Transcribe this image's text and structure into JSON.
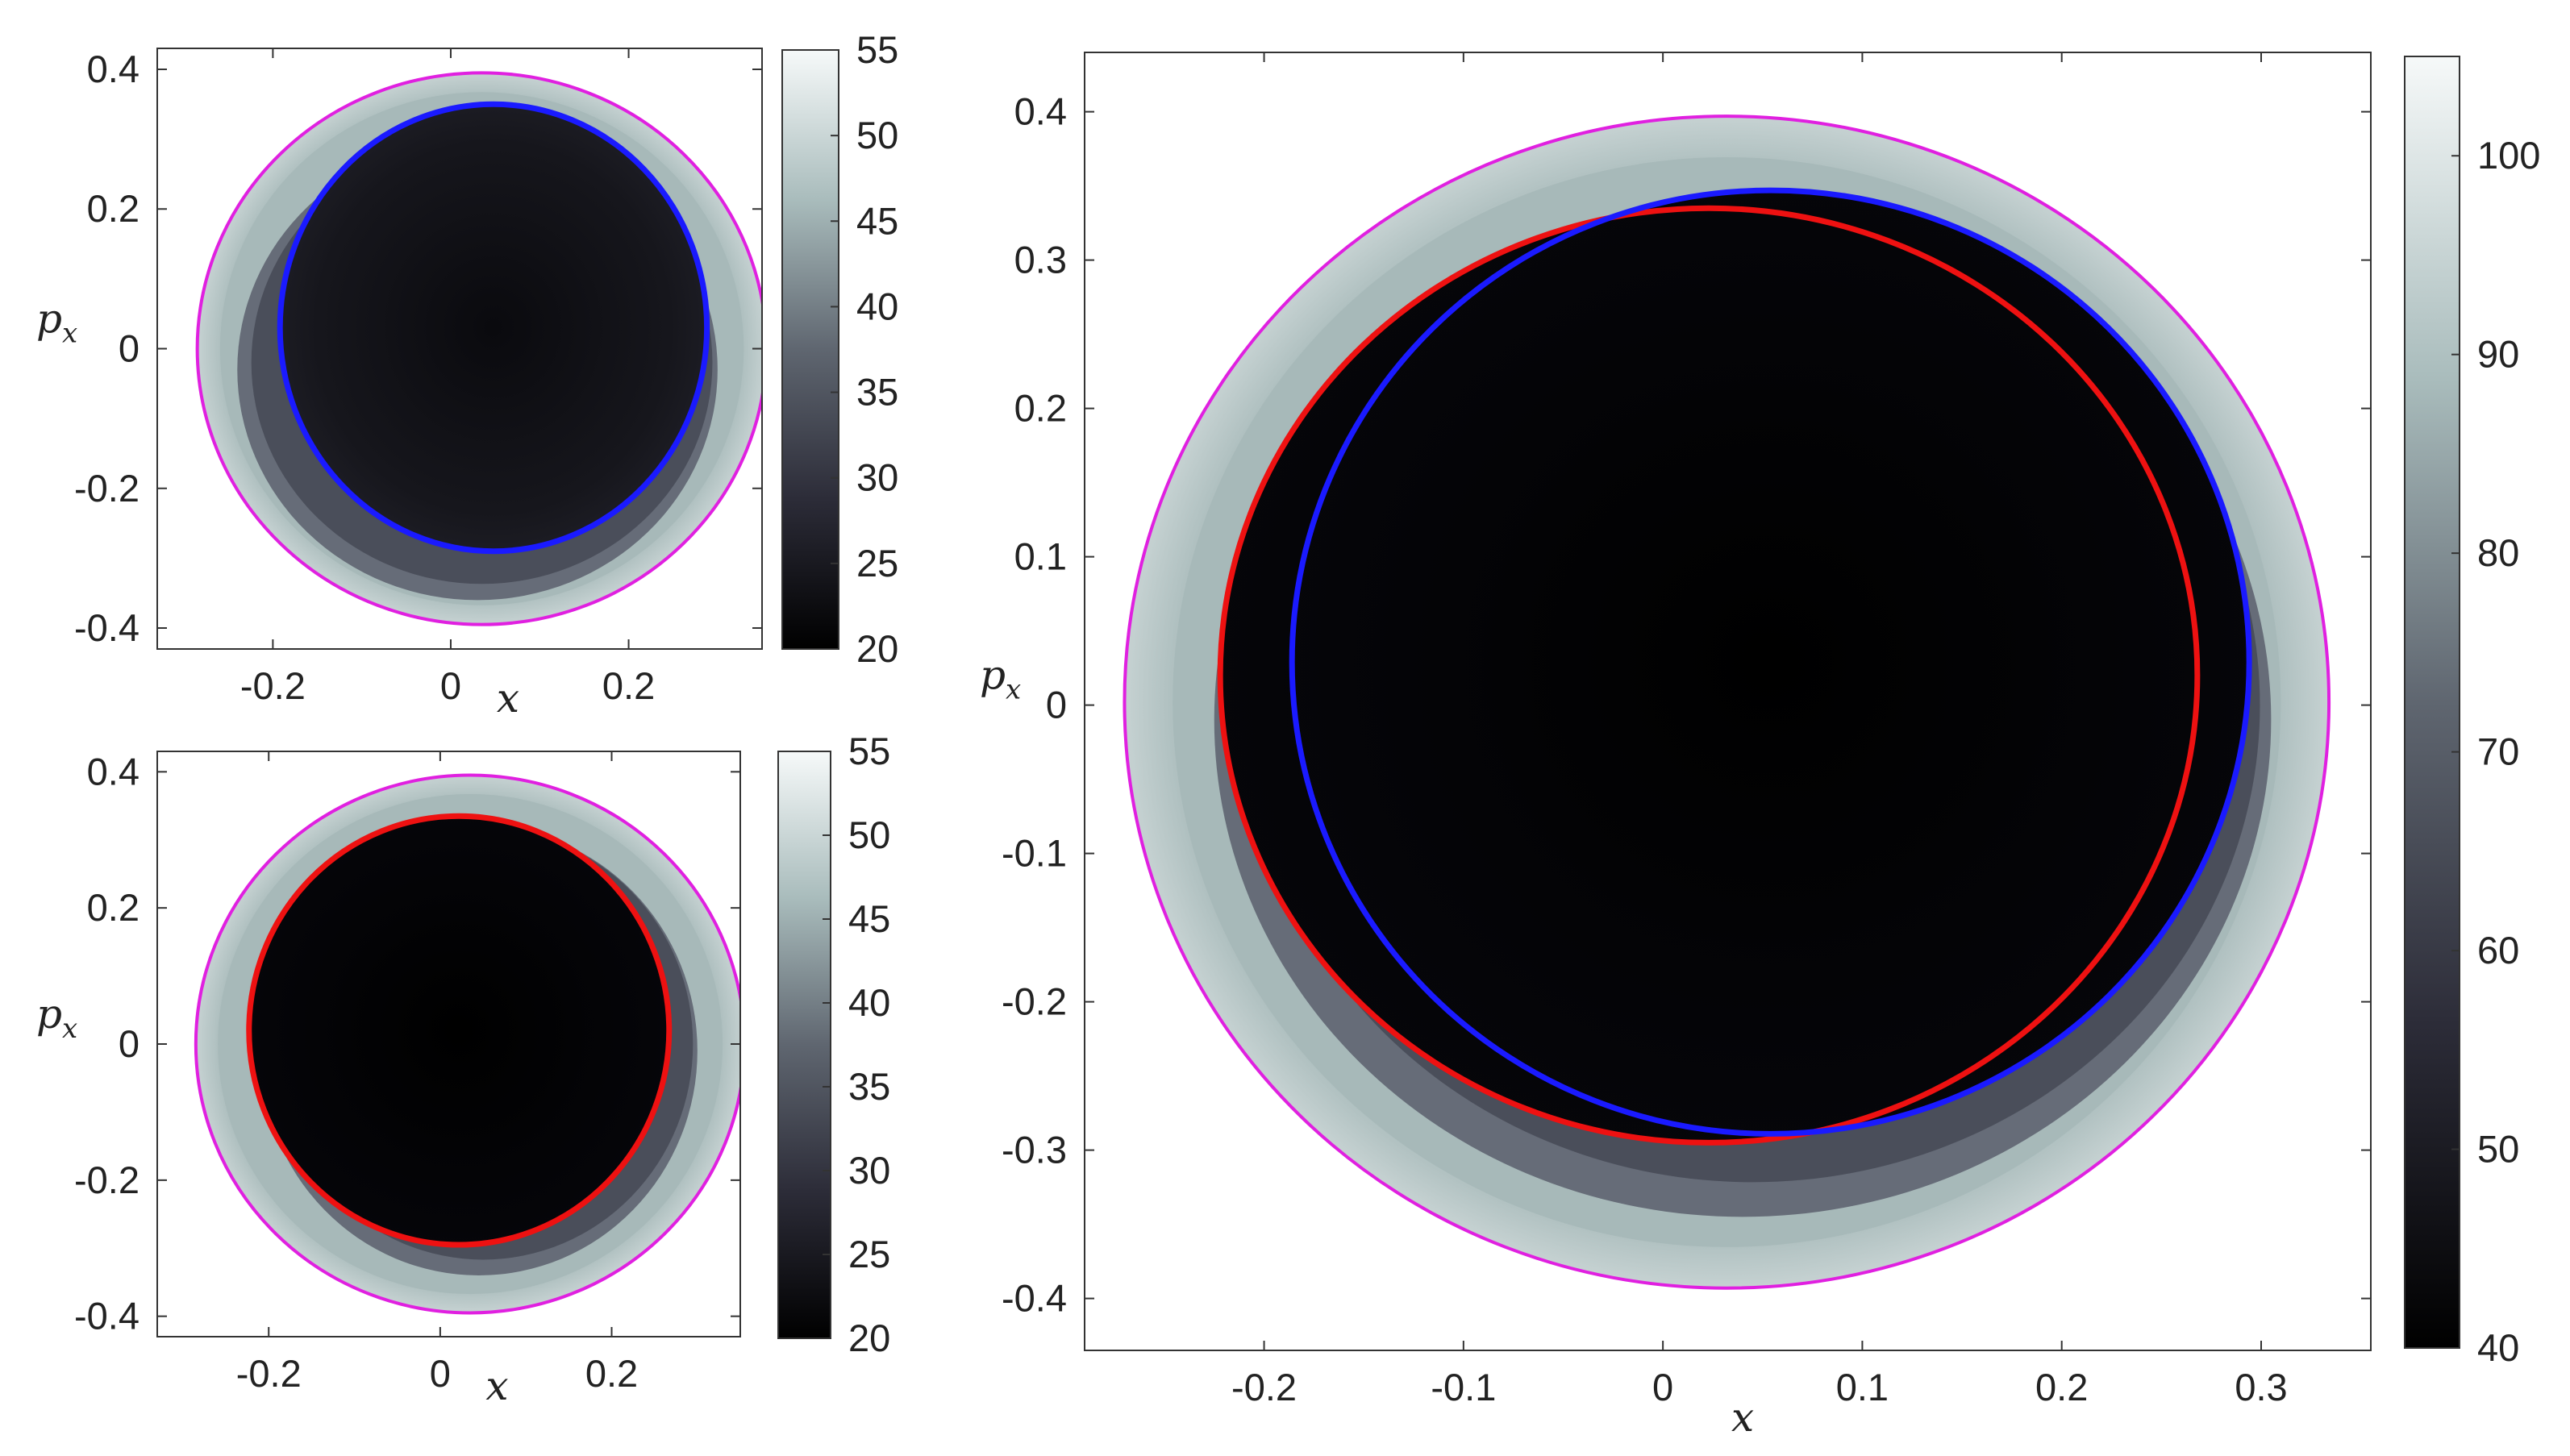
{
  "chart_data": [
    {
      "id": "top-left",
      "type": "heatmap",
      "xlabel": "x",
      "ylabel_base": "p",
      "ylabel_sub": "x",
      "xlim": [
        -0.33,
        0.35
      ],
      "ylim": [
        -0.43,
        0.43
      ],
      "xticks": [
        -0.2,
        0,
        0.2
      ],
      "xtick_labels": [
        "-0.2",
        "0",
        "0.2"
      ],
      "yticks": [
        0.4,
        0.2,
        0,
        -0.2,
        -0.4
      ],
      "ytick_labels": [
        "0.4",
        "0.2",
        "0",
        "-0.2",
        "-0.4"
      ],
      "colorbar": {
        "min": 20,
        "max": 55,
        "ticks": [
          55,
          50,
          45,
          40,
          35,
          30,
          25,
          20
        ],
        "tick_labels": [
          "55",
          "50",
          "45",
          "40",
          "35",
          "30",
          "25",
          "20"
        ]
      },
      "contours": [
        {
          "name": "outer",
          "color": "#e020e0",
          "width": 4,
          "cx": 0.035,
          "cy": 0.0,
          "rx": 0.32,
          "ry": 0.395
        },
        {
          "name": "blue",
          "color": "#1a1aff",
          "width": 7,
          "cx": 0.048,
          "cy": 0.03,
          "rx": 0.24,
          "ry": 0.32
        }
      ],
      "crescent": {
        "cx": 0.03,
        "cy": -0.03,
        "rx": 0.27,
        "ry": 0.33
      }
    },
    {
      "id": "bottom-left",
      "type": "heatmap",
      "xlabel": "x",
      "ylabel_base": "p",
      "ylabel_sub": "x",
      "xlim": [
        -0.33,
        0.35
      ],
      "ylim": [
        -0.43,
        0.43
      ],
      "xticks": [
        -0.2,
        0,
        0.2
      ],
      "xtick_labels": [
        "-0.2",
        "0",
        "0.2"
      ],
      "yticks": [
        0.4,
        0.2,
        0,
        -0.2,
        -0.4
      ],
      "ytick_labels": [
        "0.4",
        "0.2",
        "0",
        "-0.2",
        "-0.4"
      ],
      "colorbar": {
        "min": 20,
        "max": 55,
        "ticks": [
          55,
          50,
          45,
          40,
          35,
          30,
          25,
          20
        ],
        "tick_labels": [
          "55",
          "50",
          "45",
          "40",
          "35",
          "30",
          "25",
          "20"
        ]
      },
      "contours": [
        {
          "name": "outer",
          "color": "#e020e0",
          "width": 4,
          "cx": 0.035,
          "cy": 0.0,
          "rx": 0.32,
          "ry": 0.395
        },
        {
          "name": "red",
          "color": "#ee1111",
          "width": 7,
          "cx": 0.022,
          "cy": 0.02,
          "rx": 0.245,
          "ry": 0.315
        }
      ],
      "crescent": {
        "cx": 0.045,
        "cy": -0.01,
        "rx": 0.255,
        "ry": 0.33
      }
    },
    {
      "id": "right",
      "type": "heatmap",
      "xlabel": "x",
      "ylabel_base": "p",
      "ylabel_sub": "x",
      "xlim": [
        -0.29,
        0.355
      ],
      "ylim": [
        -0.435,
        0.44
      ],
      "xticks": [
        -0.2,
        -0.1,
        0,
        0.1,
        0.2,
        0.3
      ],
      "xtick_labels": [
        "-0.2",
        "-0.1",
        "0",
        "0.1",
        "0.2",
        "0.3"
      ],
      "yticks": [
        0.4,
        0.3,
        0.2,
        0.1,
        0,
        -0.1,
        -0.2,
        -0.3,
        -0.4
      ],
      "ytick_labels": [
        "0.4",
        "0.3",
        "0.2",
        "0.1",
        "0",
        "-0.1",
        "-0.2",
        "-0.3",
        "-0.4"
      ],
      "colorbar": {
        "min": 40,
        "max": 105,
        "ticks": [
          100,
          90,
          80,
          70,
          60,
          50,
          40
        ],
        "tick_labels": [
          "100",
          "90",
          "80",
          "70",
          "60",
          "50",
          "40"
        ]
      },
      "contours": [
        {
          "name": "outer",
          "color": "#e020e0",
          "width": 4,
          "cx": 0.032,
          "cy": 0.002,
          "rx": 0.302,
          "ry": 0.395
        },
        {
          "name": "red",
          "color": "#ee1111",
          "width": 7,
          "cx": 0.023,
          "cy": 0.02,
          "rx": 0.245,
          "ry": 0.315
        },
        {
          "name": "blue",
          "color": "#1a1aff",
          "width": 7,
          "cx": 0.054,
          "cy": 0.029,
          "rx": 0.24,
          "ry": 0.318
        }
      ],
      "crescent": {
        "cx": 0.04,
        "cy": -0.01,
        "rx": 0.265,
        "ry": 0.335
      }
    }
  ]
}
